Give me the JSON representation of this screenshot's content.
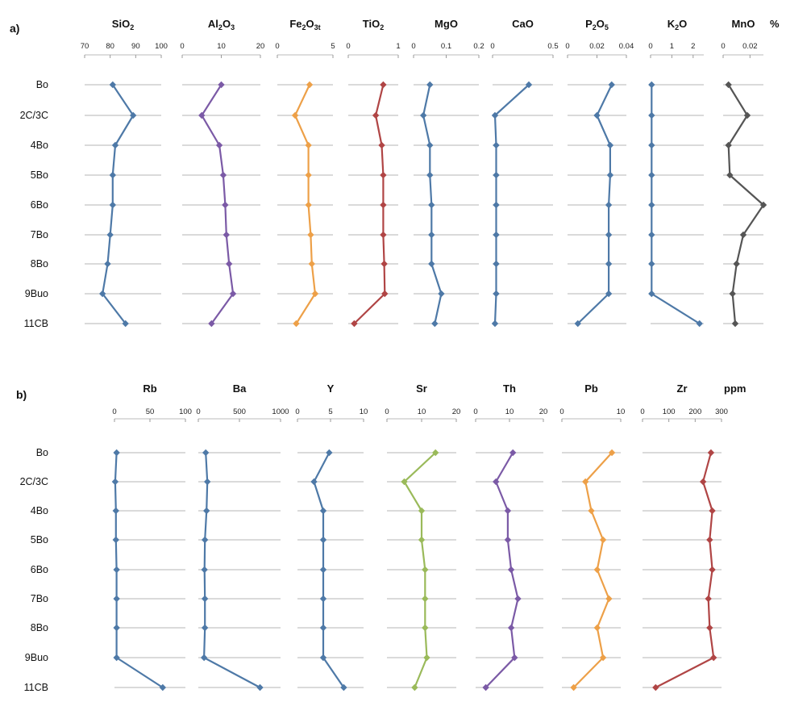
{
  "chart_data": [
    {
      "type": "line",
      "panel": "a)",
      "unit": "%",
      "categories": [
        "Bo",
        "2C/3C",
        "4Bo",
        "5Bo",
        "6Bo",
        "7Bo",
        "8Bo",
        "9Buo",
        "11CB"
      ],
      "series": [
        {
          "name": "SiO2",
          "title": {
            "main": "SiO",
            "sub": "2",
            "rest": ""
          },
          "color": "#4e79a7",
          "xlim": [
            70,
            100
          ],
          "ticks": [
            70,
            80,
            90,
            100
          ],
          "values": [
            81,
            89,
            82,
            81,
            81,
            80,
            79,
            77,
            86
          ]
        },
        {
          "name": "Al2O3",
          "title": {
            "main": "Al",
            "sub": "2",
            "rest": "O",
            "sub2": "3"
          },
          "color": "#7b5aa6",
          "xlim": [
            0,
            20
          ],
          "ticks": [
            0,
            10,
            20
          ],
          "values": [
            10,
            5,
            9.5,
            10.5,
            11,
            11.3,
            12,
            13,
            7.5
          ]
        },
        {
          "name": "Fe2O3t",
          "title": {
            "main": "Fe",
            "sub": "2",
            "rest": "O",
            "sub2": "3t"
          },
          "color": "#eda048",
          "xlim": [
            0,
            5
          ],
          "ticks": [
            0,
            5
          ],
          "values": [
            2.9,
            1.6,
            2.8,
            2.8,
            2.8,
            3.0,
            3.1,
            3.4,
            1.7
          ]
        },
        {
          "name": "TiO2",
          "title": {
            "main": "TiO",
            "sub": "2",
            "rest": ""
          },
          "color": "#b04545",
          "xlim": [
            0,
            1
          ],
          "ticks": [
            0,
            1
          ],
          "values": [
            0.7,
            0.55,
            0.67,
            0.7,
            0.7,
            0.7,
            0.72,
            0.73,
            0.12
          ]
        },
        {
          "name": "MgO",
          "title": {
            "main": "MgO",
            "sub": "",
            "rest": ""
          },
          "color": "#4e79a7",
          "xlim": [
            0,
            0.2
          ],
          "ticks": [
            0,
            0.1,
            0.2
          ],
          "values": [
            0.05,
            0.03,
            0.05,
            0.05,
            0.055,
            0.055,
            0.055,
            0.085,
            0.065
          ]
        },
        {
          "name": "CaO",
          "title": {
            "main": "CaO",
            "sub": "",
            "rest": ""
          },
          "color": "#4e79a7",
          "xlim": [
            0,
            0.5
          ],
          "ticks": [
            0,
            0.5
          ],
          "values": [
            0.3,
            0.02,
            0.03,
            0.03,
            0.03,
            0.03,
            0.03,
            0.03,
            0.02
          ]
        },
        {
          "name": "P2O5",
          "title": {
            "main": "P",
            "sub": "2",
            "rest": "O",
            "sub2": "5"
          },
          "color": "#4e79a7",
          "xlim": [
            0,
            0.04
          ],
          "ticks": [
            0,
            0.02,
            0.04
          ],
          "values": [
            0.03,
            0.02,
            0.029,
            0.029,
            0.028,
            0.028,
            0.028,
            0.028,
            0.007
          ]
        },
        {
          "name": "K2O",
          "title": {
            "main": "K",
            "sub": "2",
            "rest": "O"
          },
          "color": "#4e79a7",
          "xlim": [
            0,
            2.5
          ],
          "ticks": [
            0,
            1,
            2
          ],
          "values": [
            0.05,
            0.05,
            0.05,
            0.05,
            0.05,
            0.05,
            0.05,
            0.05,
            2.3
          ]
        },
        {
          "name": "MnO",
          "title": {
            "main": "MnO",
            "sub": "",
            "rest": ""
          },
          "color": "#555555",
          "xlim": [
            0,
            0.03
          ],
          "ticks": [
            0,
            0.02
          ],
          "values": [
            0.004,
            0.018,
            0.004,
            0.005,
            0.03,
            0.015,
            0.01,
            0.007,
            0.009
          ]
        }
      ]
    },
    {
      "type": "line",
      "panel": "b)",
      "unit": "ppm",
      "categories": [
        "Bo",
        "2C/3C",
        "4Bo",
        "5Bo",
        "6Bo",
        "7Bo",
        "8Bo",
        "9Buo",
        "11CB"
      ],
      "series": [
        {
          "name": "Rb",
          "title": {
            "main": "Rb",
            "sub": "",
            "rest": ""
          },
          "color": "#4e79a7",
          "xlim": [
            0,
            100
          ],
          "ticks": [
            0,
            50,
            100
          ],
          "values": [
            3,
            1,
            2,
            2,
            3,
            3,
            3,
            3,
            68
          ]
        },
        {
          "name": "Ba",
          "title": {
            "main": "Ba",
            "sub": "",
            "rest": ""
          },
          "color": "#4e79a7",
          "xlim": [
            0,
            1000
          ],
          "ticks": [
            0,
            500,
            1000
          ],
          "values": [
            90,
            110,
            100,
            80,
            75,
            80,
            80,
            70,
            750
          ]
        },
        {
          "name": "Y",
          "title": {
            "main": "Y",
            "sub": "",
            "rest": ""
          },
          "color": "#4e79a7",
          "xlim": [
            0,
            10
          ],
          "ticks": [
            0,
            5,
            10
          ],
          "values": [
            4.8,
            2.5,
            3.9,
            3.9,
            3.9,
            3.9,
            3.9,
            3.9,
            7.0
          ]
        },
        {
          "name": "Sr",
          "title": {
            "main": "Sr",
            "sub": "",
            "rest": ""
          },
          "color": "#9aba5a",
          "xlim": [
            0,
            20
          ],
          "ticks": [
            0,
            10,
            20
          ],
          "values": [
            14,
            5,
            10,
            10,
            11,
            11,
            11,
            11.5,
            8
          ]
        },
        {
          "name": "Th",
          "title": {
            "main": "Th",
            "sub": "",
            "rest": ""
          },
          "color": "#7b5aa6",
          "xlim": [
            0,
            20
          ],
          "ticks": [
            0,
            10,
            20
          ],
          "values": [
            11,
            6,
            9.5,
            9.5,
            10.5,
            12.5,
            10.5,
            11.5,
            3
          ]
        },
        {
          "name": "Pb",
          "title": {
            "main": "Pb",
            "sub": "",
            "rest": ""
          },
          "color": "#eda048",
          "xlim": [
            0,
            10
          ],
          "ticks": [
            0,
            10
          ],
          "values": [
            8.5,
            4,
            5,
            7,
            6,
            8,
            6,
            7,
            2
          ]
        },
        {
          "name": "Zr",
          "title": {
            "main": "Zr",
            "sub": "",
            "rest": ""
          },
          "color": "#b04545",
          "xlim": [
            0,
            300
          ],
          "ticks": [
            0,
            100,
            200,
            300
          ],
          "values": [
            260,
            230,
            265,
            255,
            265,
            250,
            255,
            270,
            50
          ]
        }
      ]
    }
  ]
}
